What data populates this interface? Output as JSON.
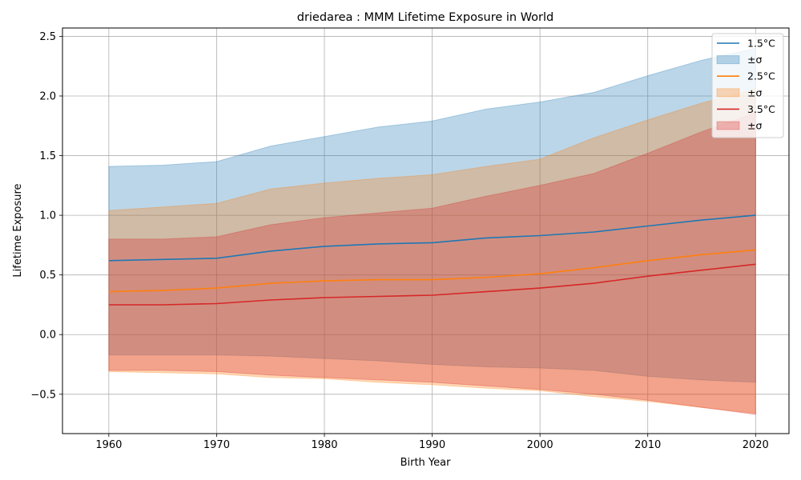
{
  "chart_data": {
    "type": "area",
    "title": "driedarea : MMM Lifetime Exposure in World",
    "xlabel": "Birth Year",
    "ylabel": "Lifetime Exposure",
    "xlim": [
      1955.7,
      2023.1
    ],
    "ylim": [
      -0.83,
      2.57
    ],
    "xticks": [
      1960,
      1970,
      1980,
      1990,
      2000,
      2010,
      2020
    ],
    "xtick_labels": [
      "1960",
      "1970",
      "1980",
      "1990",
      "2000",
      "2010",
      "2020"
    ],
    "yticks": [
      -0.5,
      0.0,
      0.5,
      1.0,
      1.5,
      2.0,
      2.5
    ],
    "ytick_labels": [
      "−0.5",
      "0.0",
      "0.5",
      "1.0",
      "1.5",
      "2.0",
      "2.5"
    ],
    "grid": true,
    "legend_position": "top-right",
    "x": [
      1960,
      1965,
      1970,
      1975,
      1980,
      1985,
      1990,
      1995,
      2000,
      2005,
      2010,
      2015,
      2020
    ],
    "series": [
      {
        "name": "1.5°C",
        "band_label": "±σ",
        "color": "#1f77b4",
        "values": [
          0.62,
          0.63,
          0.64,
          0.7,
          0.74,
          0.76,
          0.77,
          0.81,
          0.83,
          0.86,
          0.91,
          0.96,
          1.0
        ],
        "upper": [
          1.41,
          1.42,
          1.45,
          1.58,
          1.66,
          1.74,
          1.79,
          1.89,
          1.95,
          2.03,
          2.17,
          2.3,
          2.4
        ],
        "lower": [
          -0.17,
          -0.17,
          -0.17,
          -0.18,
          -0.2,
          -0.22,
          -0.25,
          -0.27,
          -0.28,
          -0.3,
          -0.35,
          -0.38,
          -0.4
        ]
      },
      {
        "name": "2.5°C",
        "band_label": "±σ",
        "color": "#ff7f0e",
        "values": [
          0.36,
          0.37,
          0.39,
          0.43,
          0.45,
          0.46,
          0.46,
          0.48,
          0.51,
          0.56,
          0.62,
          0.67,
          0.71
        ],
        "upper": [
          1.04,
          1.07,
          1.1,
          1.22,
          1.27,
          1.31,
          1.34,
          1.41,
          1.47,
          1.65,
          1.8,
          1.94,
          2.06
        ],
        "lower": [
          -0.31,
          -0.32,
          -0.33,
          -0.36,
          -0.37,
          -0.4,
          -0.42,
          -0.45,
          -0.47,
          -0.52,
          -0.56,
          -0.61,
          -0.66
        ]
      },
      {
        "name": "3.5°C",
        "band_label": "±σ",
        "color": "#d62728",
        "values": [
          0.25,
          0.25,
          0.26,
          0.29,
          0.31,
          0.32,
          0.33,
          0.36,
          0.39,
          0.43,
          0.49,
          0.54,
          0.59
        ],
        "upper": [
          0.8,
          0.8,
          0.82,
          0.92,
          0.98,
          1.02,
          1.06,
          1.16,
          1.25,
          1.35,
          1.52,
          1.7,
          1.86
        ],
        "lower": [
          -0.3,
          -0.3,
          -0.31,
          -0.34,
          -0.36,
          -0.38,
          -0.4,
          -0.43,
          -0.46,
          -0.5,
          -0.55,
          -0.61,
          -0.67
        ]
      }
    ]
  }
}
